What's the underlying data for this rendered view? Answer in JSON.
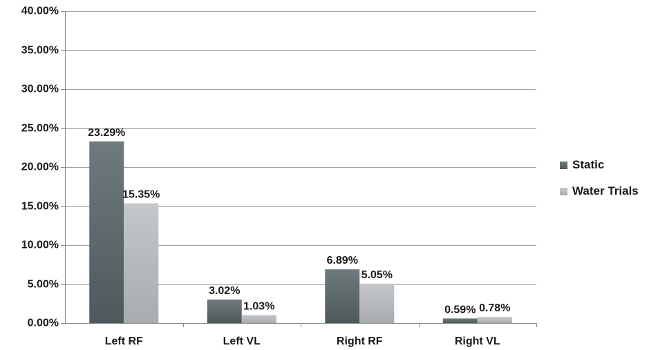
{
  "chart_data": {
    "type": "bar",
    "categories": [
      "Left RF",
      "Left VL",
      "Right RF",
      "Right VL"
    ],
    "series": [
      {
        "name": "Static",
        "values": [
          23.29,
          3.02,
          6.89,
          0.59
        ],
        "labels": [
          "23.29%",
          "3.02%",
          "6.89%",
          "0.59%"
        ],
        "color": "#5b6669"
      },
      {
        "name": "Water Trials",
        "values": [
          15.35,
          1.03,
          5.05,
          0.78
        ],
        "labels": [
          "15.35%",
          "1.03%",
          "5.05%",
          "0.78%"
        ],
        "color": "#b9bcbf"
      }
    ],
    "yticks": [
      0,
      5,
      10,
      15,
      20,
      25,
      30,
      35,
      40
    ],
    "ytick_labels": [
      "0.00%",
      "5.00%",
      "10.00%",
      "15.00%",
      "20.00%",
      "25.00%",
      "30.00%",
      "35.00%",
      "40.00%"
    ],
    "ylim": [
      0,
      40
    ],
    "grid": true,
    "legend_position": "right",
    "title": "",
    "xlabel": "",
    "ylabel": ""
  }
}
